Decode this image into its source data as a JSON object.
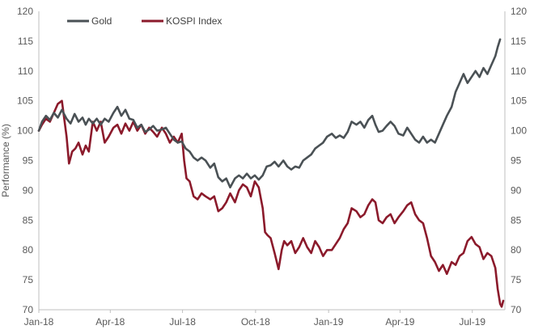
{
  "chart_data": {
    "type": "line",
    "ylabel": "Performance (%)",
    "ylim": [
      70,
      120
    ],
    "yticks": [
      "70",
      "75",
      "80",
      "85",
      "90",
      "95",
      "100",
      "105",
      "110",
      "115",
      "120"
    ],
    "y2ticks": [
      "70",
      "75",
      "80",
      "85",
      "90",
      "95",
      "100",
      "105",
      "110",
      "115",
      "120"
    ],
    "xticks": [
      "Jan-18",
      "Apr-18",
      "Jul-18",
      "Oct-18",
      "Jan-19",
      "Apr-19",
      "Jul-19"
    ],
    "xtick_dates": [
      "2018-01-01",
      "2018-04-01",
      "2018-07-01",
      "2018-10-01",
      "2019-01-01",
      "2019-04-01",
      "2019-07-01"
    ],
    "grid": false,
    "legend": "top-left",
    "series": [
      {
        "name": "Gold",
        "color": "#4a5155",
        "points": [
          [
            "2018-01-01",
            100.0
          ],
          [
            "2018-01-05",
            101.5
          ],
          [
            "2018-01-10",
            102.5
          ],
          [
            "2018-01-15",
            101.8
          ],
          [
            "2018-01-20",
            103.0
          ],
          [
            "2018-01-25",
            102.2
          ],
          [
            "2018-01-30",
            103.5
          ],
          [
            "2018-02-05",
            102.0
          ],
          [
            "2018-02-10",
            101.2
          ],
          [
            "2018-02-15",
            102.8
          ],
          [
            "2018-02-20",
            101.5
          ],
          [
            "2018-02-25",
            102.2
          ],
          [
            "2018-03-01",
            101.0
          ],
          [
            "2018-03-05",
            102.0
          ],
          [
            "2018-03-10",
            101.2
          ],
          [
            "2018-03-15",
            102.0
          ],
          [
            "2018-03-20",
            101.0
          ],
          [
            "2018-03-25",
            102.0
          ],
          [
            "2018-03-30",
            101.5
          ],
          [
            "2018-04-05",
            103.0
          ],
          [
            "2018-04-10",
            104.0
          ],
          [
            "2018-04-15",
            102.5
          ],
          [
            "2018-04-20",
            103.5
          ],
          [
            "2018-04-25",
            102.0
          ],
          [
            "2018-04-30",
            101.8
          ],
          [
            "2018-05-05",
            100.5
          ],
          [
            "2018-05-10",
            101.0
          ],
          [
            "2018-05-15",
            99.8
          ],
          [
            "2018-05-20",
            100.2
          ],
          [
            "2018-05-25",
            100.8
          ],
          [
            "2018-05-30",
            100.0
          ],
          [
            "2018-06-05",
            100.2
          ],
          [
            "2018-06-10",
            100.5
          ],
          [
            "2018-06-15",
            99.5
          ],
          [
            "2018-06-20",
            98.5
          ],
          [
            "2018-06-25",
            98.0
          ],
          [
            "2018-06-30",
            98.2
          ],
          [
            "2018-07-05",
            97.0
          ],
          [
            "2018-07-10",
            96.5
          ],
          [
            "2018-07-15",
            95.5
          ],
          [
            "2018-07-20",
            95.0
          ],
          [
            "2018-07-25",
            95.5
          ],
          [
            "2018-07-30",
            95.0
          ],
          [
            "2018-08-05",
            93.8
          ],
          [
            "2018-08-10",
            94.5
          ],
          [
            "2018-08-15",
            92.2
          ],
          [
            "2018-08-20",
            91.5
          ],
          [
            "2018-08-25",
            92.0
          ],
          [
            "2018-08-30",
            90.5
          ],
          [
            "2018-09-05",
            92.0
          ],
          [
            "2018-09-10",
            92.5
          ],
          [
            "2018-09-15",
            92.0
          ],
          [
            "2018-09-20",
            92.8
          ],
          [
            "2018-09-25",
            92.0
          ],
          [
            "2018-09-30",
            92.5
          ],
          [
            "2018-10-05",
            91.8
          ],
          [
            "2018-10-10",
            92.5
          ],
          [
            "2018-10-15",
            94.0
          ],
          [
            "2018-10-20",
            94.2
          ],
          [
            "2018-10-25",
            94.8
          ],
          [
            "2018-10-30",
            94.0
          ],
          [
            "2018-11-05",
            95.0
          ],
          [
            "2018-11-10",
            94.0
          ],
          [
            "2018-11-15",
            93.5
          ],
          [
            "2018-11-20",
            94.0
          ],
          [
            "2018-11-25",
            93.8
          ],
          [
            "2018-11-30",
            95.0
          ],
          [
            "2018-12-05",
            95.5
          ],
          [
            "2018-12-10",
            96.0
          ],
          [
            "2018-12-15",
            97.0
          ],
          [
            "2018-12-20",
            97.5
          ],
          [
            "2018-12-25",
            98.0
          ],
          [
            "2018-12-30",
            99.0
          ],
          [
            "2019-01-05",
            99.5
          ],
          [
            "2019-01-10",
            98.8
          ],
          [
            "2019-01-15",
            99.2
          ],
          [
            "2019-01-20",
            98.8
          ],
          [
            "2019-01-25",
            99.8
          ],
          [
            "2019-01-30",
            101.5
          ],
          [
            "2019-02-05",
            101.0
          ],
          [
            "2019-02-10",
            101.5
          ],
          [
            "2019-02-15",
            100.5
          ],
          [
            "2019-02-20",
            101.8
          ],
          [
            "2019-02-25",
            102.5
          ],
          [
            "2019-03-01",
            101.0
          ],
          [
            "2019-03-05",
            99.8
          ],
          [
            "2019-03-10",
            100.0
          ],
          [
            "2019-03-15",
            100.8
          ],
          [
            "2019-03-20",
            101.5
          ],
          [
            "2019-03-25",
            100.8
          ],
          [
            "2019-03-30",
            99.5
          ],
          [
            "2019-04-05",
            99.2
          ],
          [
            "2019-04-10",
            100.5
          ],
          [
            "2019-04-15",
            99.5
          ],
          [
            "2019-04-20",
            98.5
          ],
          [
            "2019-04-25",
            98.0
          ],
          [
            "2019-04-30",
            99.0
          ],
          [
            "2019-05-05",
            98.0
          ],
          [
            "2019-05-10",
            98.5
          ],
          [
            "2019-05-15",
            98.0
          ],
          [
            "2019-05-20",
            99.5
          ],
          [
            "2019-05-25",
            101.0
          ],
          [
            "2019-05-30",
            102.5
          ],
          [
            "2019-06-05",
            104.0
          ],
          [
            "2019-06-10",
            106.5
          ],
          [
            "2019-06-15",
            108.0
          ],
          [
            "2019-06-20",
            109.5
          ],
          [
            "2019-06-25",
            108.0
          ],
          [
            "2019-06-30",
            109.0
          ],
          [
            "2019-07-05",
            110.0
          ],
          [
            "2019-07-10",
            109.0
          ],
          [
            "2019-07-15",
            110.5
          ],
          [
            "2019-07-20",
            109.5
          ],
          [
            "2019-07-25",
            111.0
          ],
          [
            "2019-07-30",
            112.5
          ],
          [
            "2019-08-02",
            114.0
          ],
          [
            "2019-08-05",
            115.3
          ]
        ]
      },
      {
        "name": "KOSPI Index",
        "color": "#8b1a2b",
        "points": [
          [
            "2018-01-01",
            100.0
          ],
          [
            "2018-01-05",
            101.0
          ],
          [
            "2018-01-10",
            102.0
          ],
          [
            "2018-01-15",
            101.5
          ],
          [
            "2018-01-20",
            103.0
          ],
          [
            "2018-01-25",
            104.5
          ],
          [
            "2018-01-30",
            105.0
          ],
          [
            "2018-02-05",
            99.0
          ],
          [
            "2018-02-08",
            94.5
          ],
          [
            "2018-02-12",
            96.5
          ],
          [
            "2018-02-16",
            97.0
          ],
          [
            "2018-02-20",
            98.0
          ],
          [
            "2018-02-25",
            96.0
          ],
          [
            "2018-03-01",
            97.5
          ],
          [
            "2018-03-05",
            96.5
          ],
          [
            "2018-03-10",
            101.5
          ],
          [
            "2018-03-15",
            100.0
          ],
          [
            "2018-03-20",
            101.5
          ],
          [
            "2018-03-25",
            98.0
          ],
          [
            "2018-03-30",
            99.0
          ],
          [
            "2018-04-05",
            100.5
          ],
          [
            "2018-04-10",
            101.0
          ],
          [
            "2018-04-15",
            99.5
          ],
          [
            "2018-04-20",
            101.2
          ],
          [
            "2018-04-25",
            100.0
          ],
          [
            "2018-04-30",
            101.5
          ],
          [
            "2018-05-05",
            100.0
          ],
          [
            "2018-05-10",
            101.0
          ],
          [
            "2018-05-15",
            99.5
          ],
          [
            "2018-05-20",
            100.5
          ],
          [
            "2018-05-25",
            99.8
          ],
          [
            "2018-05-30",
            99.0
          ],
          [
            "2018-06-05",
            100.5
          ],
          [
            "2018-06-10",
            99.5
          ],
          [
            "2018-06-15",
            98.0
          ],
          [
            "2018-06-20",
            99.0
          ],
          [
            "2018-06-25",
            98.0
          ],
          [
            "2018-06-30",
            99.5
          ],
          [
            "2018-07-03",
            95.0
          ],
          [
            "2018-07-06",
            92.0
          ],
          [
            "2018-07-10",
            91.5
          ],
          [
            "2018-07-15",
            89.0
          ],
          [
            "2018-07-20",
            88.5
          ],
          [
            "2018-07-25",
            89.5
          ],
          [
            "2018-07-30",
            89.0
          ],
          [
            "2018-08-05",
            88.5
          ],
          [
            "2018-08-10",
            89.0
          ],
          [
            "2018-08-15",
            86.5
          ],
          [
            "2018-08-20",
            87.0
          ],
          [
            "2018-08-25",
            88.0
          ],
          [
            "2018-08-30",
            89.5
          ],
          [
            "2018-09-05",
            88.0
          ],
          [
            "2018-09-10",
            90.0
          ],
          [
            "2018-09-15",
            91.0
          ],
          [
            "2018-09-20",
            90.5
          ],
          [
            "2018-09-25",
            89.0
          ],
          [
            "2018-09-30",
            91.5
          ],
          [
            "2018-10-05",
            90.5
          ],
          [
            "2018-10-10",
            87.0
          ],
          [
            "2018-10-13",
            83.0
          ],
          [
            "2018-10-16",
            82.5
          ],
          [
            "2018-10-20",
            82.0
          ],
          [
            "2018-10-25",
            79.5
          ],
          [
            "2018-10-30",
            76.8
          ],
          [
            "2018-11-03",
            80.0
          ],
          [
            "2018-11-06",
            81.5
          ],
          [
            "2018-11-10",
            80.8
          ],
          [
            "2018-11-15",
            81.5
          ],
          [
            "2018-11-20",
            79.5
          ],
          [
            "2018-11-25",
            80.5
          ],
          [
            "2018-11-30",
            82.0
          ],
          [
            "2018-12-05",
            80.5
          ],
          [
            "2018-12-10",
            79.5
          ],
          [
            "2018-12-15",
            81.5
          ],
          [
            "2018-12-20",
            80.5
          ],
          [
            "2018-12-25",
            79.0
          ],
          [
            "2018-12-30",
            80.0
          ],
          [
            "2019-01-05",
            80.0
          ],
          [
            "2019-01-10",
            81.0
          ],
          [
            "2019-01-15",
            82.0
          ],
          [
            "2019-01-20",
            83.5
          ],
          [
            "2019-01-25",
            84.5
          ],
          [
            "2019-01-30",
            87.0
          ],
          [
            "2019-02-05",
            86.5
          ],
          [
            "2019-02-10",
            85.5
          ],
          [
            "2019-02-15",
            86.0
          ],
          [
            "2019-02-20",
            87.5
          ],
          [
            "2019-02-25",
            88.5
          ],
          [
            "2019-03-01",
            88.0
          ],
          [
            "2019-03-05",
            85.0
          ],
          [
            "2019-03-10",
            84.5
          ],
          [
            "2019-03-15",
            85.5
          ],
          [
            "2019-03-20",
            86.0
          ],
          [
            "2019-03-25",
            84.5
          ],
          [
            "2019-03-30",
            85.5
          ],
          [
            "2019-04-05",
            86.5
          ],
          [
            "2019-04-10",
            87.5
          ],
          [
            "2019-04-15",
            88.0
          ],
          [
            "2019-04-20",
            86.0
          ],
          [
            "2019-04-25",
            85.0
          ],
          [
            "2019-04-30",
            84.5
          ],
          [
            "2019-05-05",
            82.0
          ],
          [
            "2019-05-10",
            79.0
          ],
          [
            "2019-05-15",
            78.0
          ],
          [
            "2019-05-20",
            76.5
          ],
          [
            "2019-05-25",
            77.5
          ],
          [
            "2019-05-30",
            76.0
          ],
          [
            "2019-06-05",
            78.0
          ],
          [
            "2019-06-10",
            77.5
          ],
          [
            "2019-06-15",
            79.0
          ],
          [
            "2019-06-20",
            79.5
          ],
          [
            "2019-06-25",
            81.5
          ],
          [
            "2019-06-30",
            82.2
          ],
          [
            "2019-07-05",
            81.0
          ],
          [
            "2019-07-10",
            80.5
          ],
          [
            "2019-07-15",
            78.5
          ],
          [
            "2019-07-20",
            79.5
          ],
          [
            "2019-07-25",
            79.0
          ],
          [
            "2019-07-30",
            77.0
          ],
          [
            "2019-08-02",
            73.5
          ],
          [
            "2019-08-05",
            71.0
          ],
          [
            "2019-08-07",
            70.5
          ],
          [
            "2019-08-09",
            71.5
          ]
        ]
      }
    ]
  }
}
